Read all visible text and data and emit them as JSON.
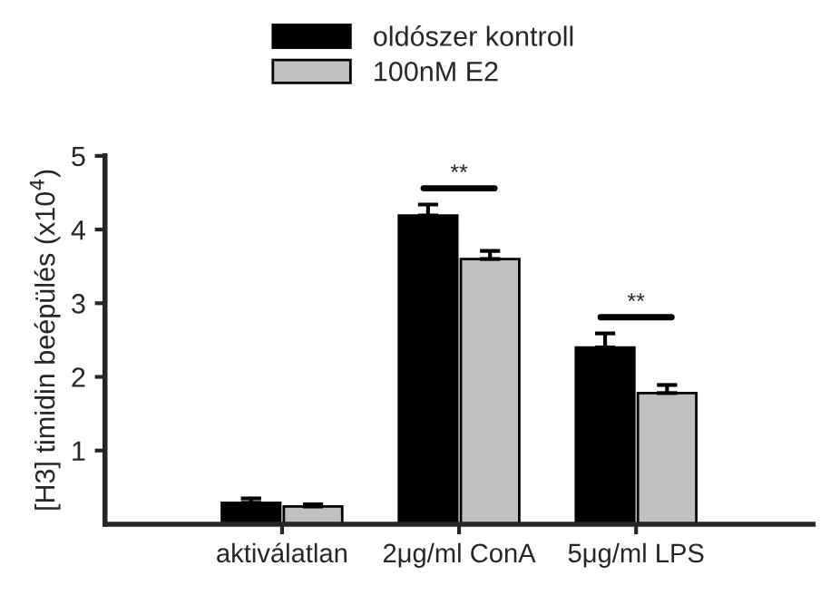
{
  "chart_data": {
    "type": "bar",
    "ylabel": "[H3] timidin beépülés (x10$^{4}$)",
    "categories": [
      "aktiválatlan",
      "2μg/ml ConA",
      "5μg/ml LPS"
    ],
    "series": [
      {
        "name": "oldószer kontroll",
        "color": "#000000",
        "values": [
          0.29,
          4.19,
          2.4
        ],
        "errors": [
          0.06,
          0.15,
          0.19
        ]
      },
      {
        "name": "100nM E2",
        "color": "#c0c0c0",
        "values": [
          0.24,
          3.6,
          1.78
        ],
        "errors": [
          0.03,
          0.11,
          0.11
        ]
      }
    ],
    "ylim": [
      0,
      5
    ],
    "yticks": [
      1,
      2,
      3,
      4,
      5
    ],
    "grid": false,
    "legend": "top",
    "annotations": [
      "**",
      "**"
    ]
  }
}
